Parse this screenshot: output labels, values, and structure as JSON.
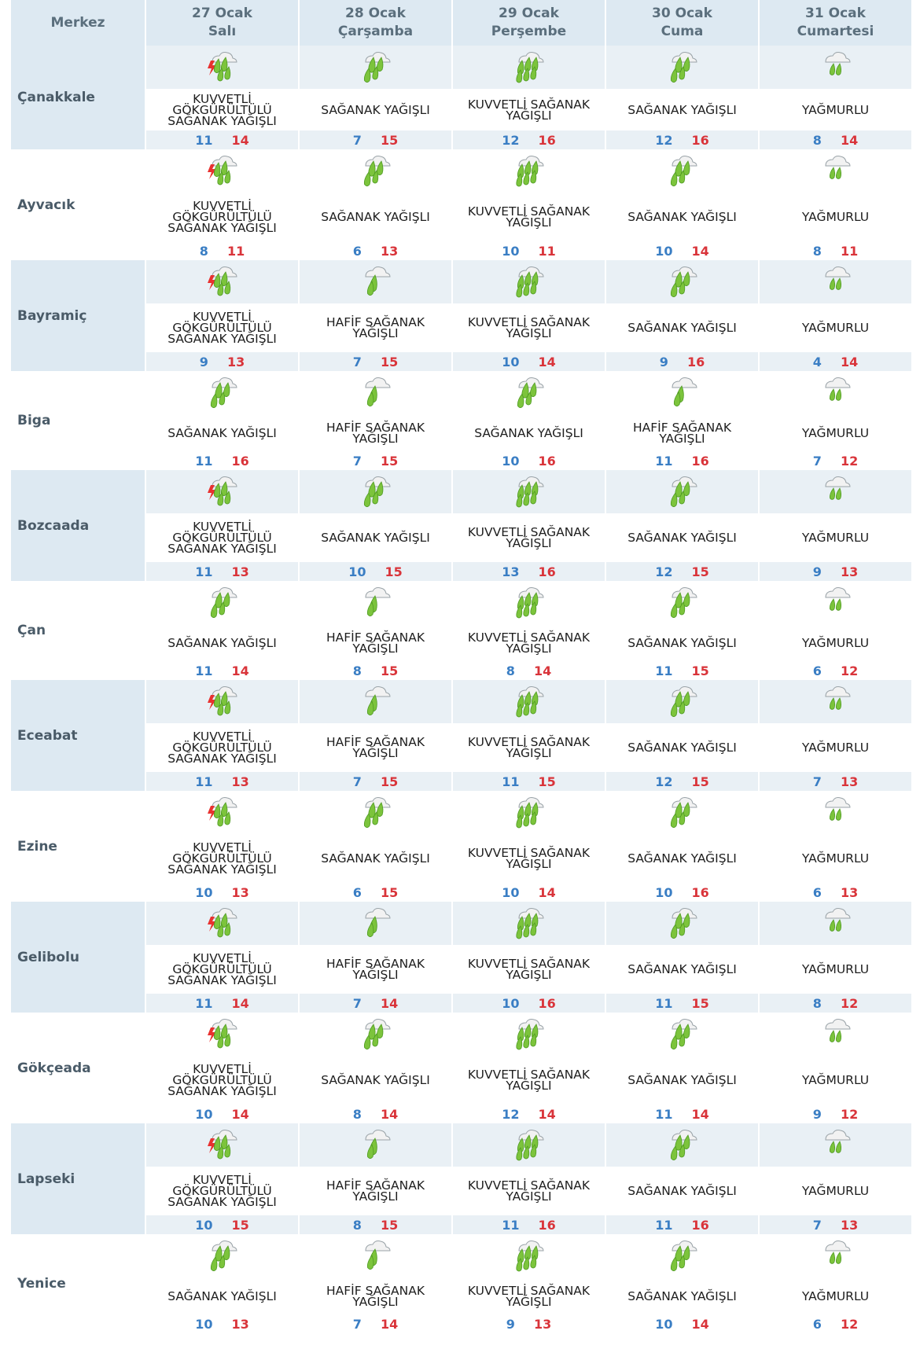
{
  "header": {
    "merkez_label": "Merkez",
    "days": [
      {
        "date": "27 Ocak",
        "weekday": "Salı"
      },
      {
        "date": "28 Ocak",
        "weekday": "Çarşamba"
      },
      {
        "date": "29 Ocak",
        "weekday": "Perşembe"
      },
      {
        "date": "30 Ocak",
        "weekday": "Cuma"
      },
      {
        "date": "31 Ocak",
        "weekday": "Cumartesi"
      }
    ]
  },
  "colors": {
    "min_temp": "#3a7ec4",
    "max_temp": "#d9343a",
    "header_bg": "#dde9f2",
    "rain_green": "#7cc43c",
    "lightning": "#e8312f"
  },
  "rows": [
    {
      "city": "Çanakkale",
      "forecasts": [
        {
          "icon": "thunderstorm-rain-icon",
          "text": "KUVVETLİ GÖKGÜRÜLTÜLÜ SAĞANAK YAĞIŞLI",
          "min": "11",
          "max": "14"
        },
        {
          "icon": "shower-rain-icon",
          "text": "SAĞANAK YAĞIŞLI",
          "min": "7",
          "max": "15"
        },
        {
          "icon": "heavy-shower-rain-icon",
          "text": "KUVVETLİ SAĞANAK YAĞIŞLI",
          "min": "12",
          "max": "16"
        },
        {
          "icon": "shower-rain-icon",
          "text": "SAĞANAK YAĞIŞLI",
          "min": "12",
          "max": "16"
        },
        {
          "icon": "cloud-rain-icon",
          "text": "YAĞMURLU",
          "min": "8",
          "max": "14"
        }
      ]
    },
    {
      "city": "Ayvacık",
      "forecasts": [
        {
          "icon": "thunderstorm-rain-icon",
          "text": "KUVVETLİ GÖKGÜRÜLTÜLÜ SAĞANAK YAĞIŞLI",
          "min": "8",
          "max": "11"
        },
        {
          "icon": "shower-rain-icon",
          "text": "SAĞANAK YAĞIŞLI",
          "min": "6",
          "max": "13"
        },
        {
          "icon": "heavy-shower-rain-icon",
          "text": "KUVVETLİ SAĞANAK YAĞIŞLI",
          "min": "10",
          "max": "11"
        },
        {
          "icon": "shower-rain-icon",
          "text": "SAĞANAK YAĞIŞLI",
          "min": "10",
          "max": "14"
        },
        {
          "icon": "cloud-rain-icon",
          "text": "YAĞMURLU",
          "min": "8",
          "max": "11"
        }
      ]
    },
    {
      "city": "Bayramiç",
      "forecasts": [
        {
          "icon": "thunderstorm-rain-icon",
          "text": "KUVVETLİ GÖKGÜRÜLTÜLÜ SAĞANAK YAĞIŞLI",
          "min": "9",
          "max": "13"
        },
        {
          "icon": "light-shower-rain-icon",
          "text": "HAFİF SAĞANAK YAĞIŞLI",
          "min": "7",
          "max": "15"
        },
        {
          "icon": "heavy-shower-rain-icon",
          "text": "KUVVETLİ SAĞANAK YAĞIŞLI",
          "min": "10",
          "max": "14"
        },
        {
          "icon": "shower-rain-icon",
          "text": "SAĞANAK YAĞIŞLI",
          "min": "9",
          "max": "16"
        },
        {
          "icon": "cloud-rain-icon",
          "text": "YAĞMURLU",
          "min": "4",
          "max": "14"
        }
      ]
    },
    {
      "city": "Biga",
      "forecasts": [
        {
          "icon": "shower-rain-icon",
          "text": "SAĞANAK YAĞIŞLI",
          "min": "11",
          "max": "16"
        },
        {
          "icon": "light-shower-rain-icon",
          "text": "HAFİF SAĞANAK YAĞIŞLI",
          "min": "7",
          "max": "15"
        },
        {
          "icon": "shower-rain-icon",
          "text": "SAĞANAK YAĞIŞLI",
          "min": "10",
          "max": "16"
        },
        {
          "icon": "light-shower-rain-icon",
          "text": "HAFİF SAĞANAK YAĞIŞLI",
          "min": "11",
          "max": "16"
        },
        {
          "icon": "cloud-rain-icon",
          "text": "YAĞMURLU",
          "min": "7",
          "max": "12"
        }
      ]
    },
    {
      "city": "Bozcaada",
      "forecasts": [
        {
          "icon": "thunderstorm-rain-icon",
          "text": "KUVVETLİ GÖKGÜRÜLTÜLÜ SAĞANAK YAĞIŞLI",
          "min": "11",
          "max": "13"
        },
        {
          "icon": "shower-rain-icon",
          "text": "SAĞANAK YAĞIŞLI",
          "min": "10",
          "max": "15"
        },
        {
          "icon": "heavy-shower-rain-icon",
          "text": "KUVVETLİ SAĞANAK YAĞIŞLI",
          "min": "13",
          "max": "16"
        },
        {
          "icon": "shower-rain-icon",
          "text": "SAĞANAK YAĞIŞLI",
          "min": "12",
          "max": "15"
        },
        {
          "icon": "cloud-rain-icon",
          "text": "YAĞMURLU",
          "min": "9",
          "max": "13"
        }
      ]
    },
    {
      "city": "Çan",
      "forecasts": [
        {
          "icon": "shower-rain-icon",
          "text": "SAĞANAK YAĞIŞLI",
          "min": "11",
          "max": "14"
        },
        {
          "icon": "light-shower-rain-icon",
          "text": "HAFİF SAĞANAK YAĞIŞLI",
          "min": "8",
          "max": "15"
        },
        {
          "icon": "heavy-shower-rain-icon",
          "text": "KUVVETLİ SAĞANAK YAĞIŞLI",
          "min": "8",
          "max": "14"
        },
        {
          "icon": "shower-rain-icon",
          "text": "SAĞANAK YAĞIŞLI",
          "min": "11",
          "max": "15"
        },
        {
          "icon": "cloud-rain-icon",
          "text": "YAĞMURLU",
          "min": "6",
          "max": "12"
        }
      ]
    },
    {
      "city": "Eceabat",
      "forecasts": [
        {
          "icon": "thunderstorm-rain-icon",
          "text": "KUVVETLİ GÖKGÜRÜLTÜLÜ SAĞANAK YAĞIŞLI",
          "min": "11",
          "max": "13"
        },
        {
          "icon": "light-shower-rain-icon",
          "text": "HAFİF SAĞANAK YAĞIŞLI",
          "min": "7",
          "max": "15"
        },
        {
          "icon": "heavy-shower-rain-icon",
          "text": "KUVVETLİ SAĞANAK YAĞIŞLI",
          "min": "11",
          "max": "15"
        },
        {
          "icon": "shower-rain-icon",
          "text": "SAĞANAK YAĞIŞLI",
          "min": "12",
          "max": "15"
        },
        {
          "icon": "cloud-rain-icon",
          "text": "YAĞMURLU",
          "min": "7",
          "max": "13"
        }
      ]
    },
    {
      "city": "Ezine",
      "forecasts": [
        {
          "icon": "thunderstorm-rain-icon",
          "text": "KUVVETLİ GÖKGÜRÜLTÜLÜ SAĞANAK YAĞIŞLI",
          "min": "10",
          "max": "13"
        },
        {
          "icon": "shower-rain-icon",
          "text": "SAĞANAK YAĞIŞLI",
          "min": "6",
          "max": "15"
        },
        {
          "icon": "heavy-shower-rain-icon",
          "text": "KUVVETLİ SAĞANAK YAĞIŞLI",
          "min": "10",
          "max": "14"
        },
        {
          "icon": "shower-rain-icon",
          "text": "SAĞANAK YAĞIŞLI",
          "min": "10",
          "max": "16"
        },
        {
          "icon": "cloud-rain-icon",
          "text": "YAĞMURLU",
          "min": "6",
          "max": "13"
        }
      ]
    },
    {
      "city": "Gelibolu",
      "forecasts": [
        {
          "icon": "thunderstorm-rain-icon",
          "text": "KUVVETLİ GÖKGÜRÜLTÜLÜ SAĞANAK YAĞIŞLI",
          "min": "11",
          "max": "14"
        },
        {
          "icon": "light-shower-rain-icon",
          "text": "HAFİF SAĞANAK YAĞIŞLI",
          "min": "7",
          "max": "14"
        },
        {
          "icon": "heavy-shower-rain-icon",
          "text": "KUVVETLİ SAĞANAK YAĞIŞLI",
          "min": "10",
          "max": "16"
        },
        {
          "icon": "shower-rain-icon",
          "text": "SAĞANAK YAĞIŞLI",
          "min": "11",
          "max": "15"
        },
        {
          "icon": "cloud-rain-icon",
          "text": "YAĞMURLU",
          "min": "8",
          "max": "12"
        }
      ]
    },
    {
      "city": "Gökçeada",
      "forecasts": [
        {
          "icon": "thunderstorm-rain-icon",
          "text": "KUVVETLİ GÖKGÜRÜLTÜLÜ SAĞANAK YAĞIŞLI",
          "min": "10",
          "max": "14"
        },
        {
          "icon": "shower-rain-icon",
          "text": "SAĞANAK YAĞIŞLI",
          "min": "8",
          "max": "14"
        },
        {
          "icon": "heavy-shower-rain-icon",
          "text": "KUVVETLİ SAĞANAK YAĞIŞLI",
          "min": "12",
          "max": "14"
        },
        {
          "icon": "shower-rain-icon",
          "text": "SAĞANAK YAĞIŞLI",
          "min": "11",
          "max": "14"
        },
        {
          "icon": "cloud-rain-icon",
          "text": "YAĞMURLU",
          "min": "9",
          "max": "12"
        }
      ]
    },
    {
      "city": "Lapseki",
      "forecasts": [
        {
          "icon": "thunderstorm-rain-icon",
          "text": "KUVVETLİ GÖKGÜRÜLTÜLÜ SAĞANAK YAĞIŞLI",
          "min": "10",
          "max": "15"
        },
        {
          "icon": "light-shower-rain-icon",
          "text": "HAFİF SAĞANAK YAĞIŞLI",
          "min": "8",
          "max": "15"
        },
        {
          "icon": "heavy-shower-rain-icon",
          "text": "KUVVETLİ SAĞANAK YAĞIŞLI",
          "min": "11",
          "max": "16"
        },
        {
          "icon": "shower-rain-icon",
          "text": "SAĞANAK YAĞIŞLI",
          "min": "11",
          "max": "16"
        },
        {
          "icon": "cloud-rain-icon",
          "text": "YAĞMURLU",
          "min": "7",
          "max": "13"
        }
      ]
    },
    {
      "city": "Yenice",
      "forecasts": [
        {
          "icon": "shower-rain-icon",
          "text": "SAĞANAK YAĞIŞLI",
          "min": "10",
          "max": "13"
        },
        {
          "icon": "light-shower-rain-icon",
          "text": "HAFİF SAĞANAK YAĞIŞLI",
          "min": "7",
          "max": "14"
        },
        {
          "icon": "heavy-shower-rain-icon",
          "text": "KUVVETLİ SAĞANAK YAĞIŞLI",
          "min": "9",
          "max": "13"
        },
        {
          "icon": "shower-rain-icon",
          "text": "SAĞANAK YAĞIŞLI",
          "min": "10",
          "max": "14"
        },
        {
          "icon": "cloud-rain-icon",
          "text": "YAĞMURLU",
          "min": "6",
          "max": "12"
        }
      ]
    }
  ]
}
